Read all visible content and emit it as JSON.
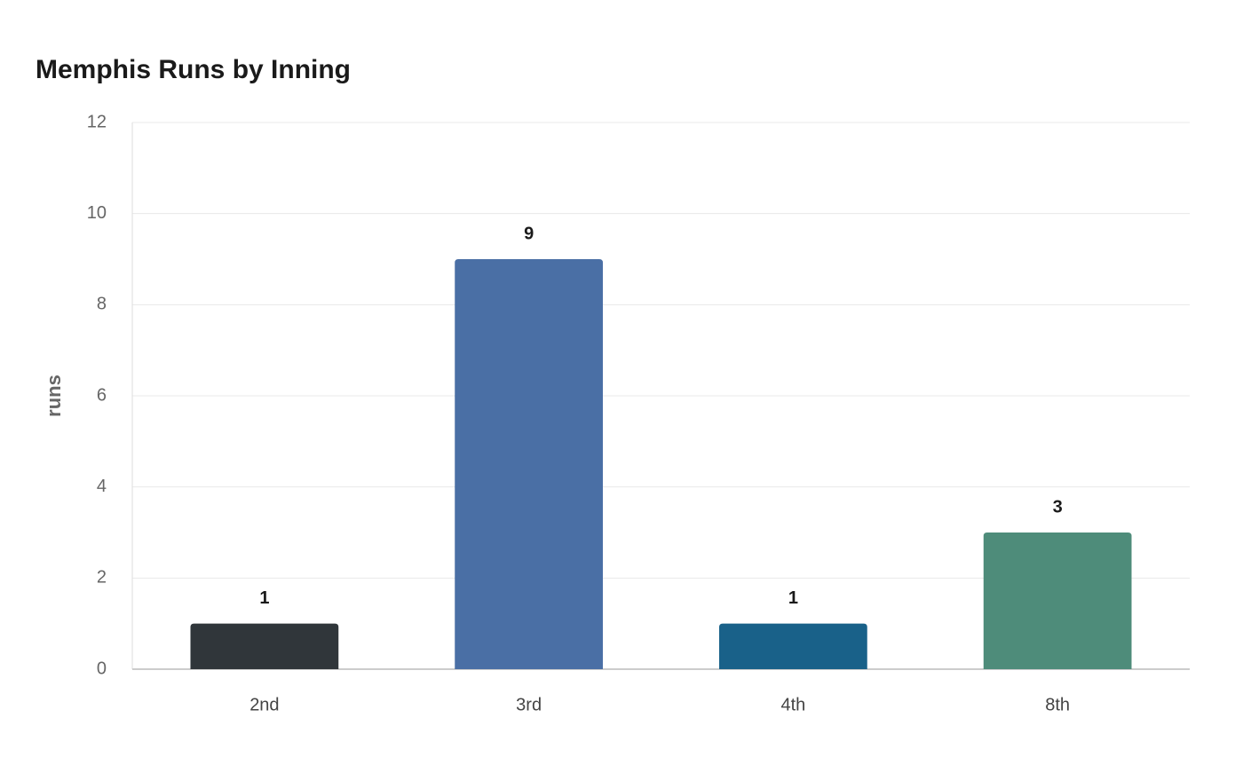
{
  "chart_data": {
    "type": "bar",
    "title": "Memphis Runs by Inning",
    "y_label": "runs",
    "categories": [
      "2nd",
      "3rd",
      "4th",
      "8th"
    ],
    "values": [
      1,
      9,
      1,
      3
    ],
    "colors": [
      "#30363a",
      "#4a6fa5",
      "#196189",
      "#4e8c7a"
    ],
    "ylim": [
      0,
      12
    ],
    "yticks": [
      0,
      2,
      4,
      6,
      8,
      10,
      12
    ],
    "grid": true
  }
}
